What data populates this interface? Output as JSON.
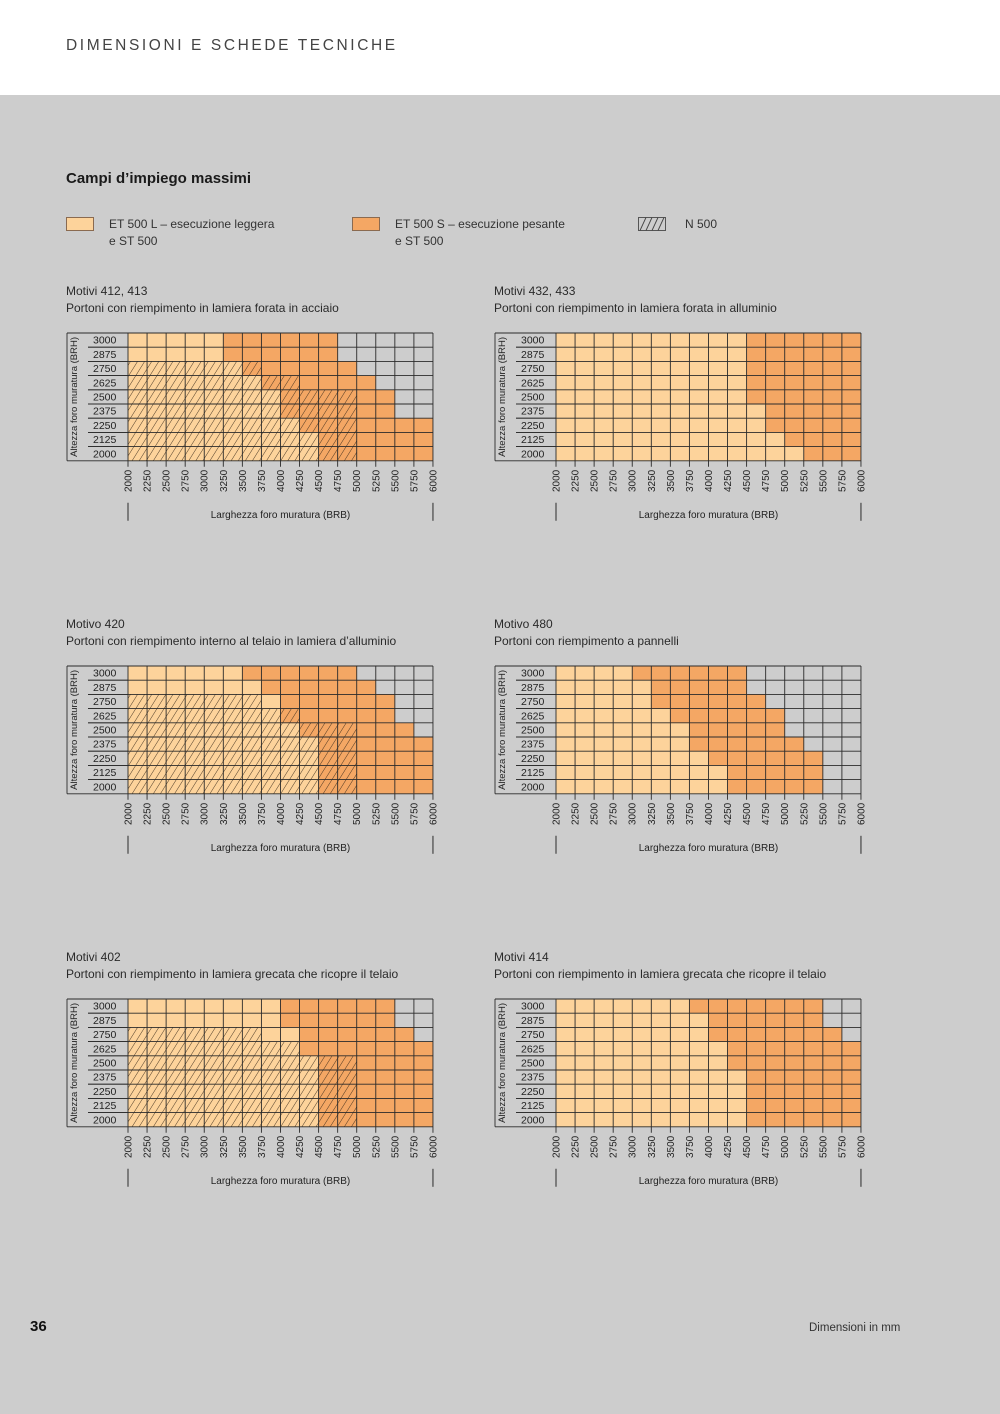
{
  "header": {
    "title": "DIMENSIONI E SCHEDE TECNICHE"
  },
  "section": {
    "title": "Campi d’impiego massimi"
  },
  "colors": {
    "light": "#fdd39b",
    "dark": "#f4a764",
    "empty": "#cdcdcd",
    "grid": "#2b2b2b",
    "hatch": "#3a2a1a"
  },
  "legend": [
    {
      "key": "L",
      "lines": [
        "ET 500 L – esecuzione leggera",
        "e ST 500"
      ],
      "swatch": "light"
    },
    {
      "key": "S",
      "lines": [
        "ET 500 S – esecuzione pesante",
        "e ST 500"
      ],
      "swatch": "dark"
    },
    {
      "key": "N",
      "lines": [
        "N 500"
      ],
      "swatch": "hatch"
    }
  ],
  "footer": {
    "page_number": "36",
    "note": "Dimensioni in mm"
  },
  "chart_data": [
    {
      "type": "heatmap",
      "title": "Motivi 412, 413",
      "subtitle": "Portoni con riempimento in lamiera forata in acciaio",
      "xlabel": "Larghezza foro muratura (BRB)",
      "ylabel": "Altezza foro muratura (BRH)",
      "x_ticks": [
        "2000",
        "2250",
        "2500",
        "2750",
        "3000",
        "3250",
        "3500",
        "3750",
        "4000",
        "4250",
        "4500",
        "4750",
        "5000",
        "5250",
        "5500",
        "5750",
        "6000"
      ],
      "y_ticks": [
        "3000",
        "2875",
        "2750",
        "2625",
        "2500",
        "2375",
        "2250",
        "2125",
        "2000"
      ],
      "legend_codes": {
        "L": "ET 500 L – esecuzione leggera e ST 500",
        "S": "ET 500 S – esecuzione pesante e ST 500",
        "-": "not available",
        "hatch": "N 500"
      },
      "rows": [
        {
          "height": "3000",
          "cells": "LLLLLSSSSSS-----",
          "n500_cols": 0
        },
        {
          "height": "2875",
          "cells": "LLLLLSSSSSS-----",
          "n500_cols": 0
        },
        {
          "height": "2750",
          "cells": "LLLLLLSSSSSS----",
          "n500_cols": 7
        },
        {
          "height": "2625",
          "cells": "LLLLLLLSSSSSS---",
          "n500_cols": 9
        },
        {
          "height": "2500",
          "cells": "LLLLLLLLSSSSSS--",
          "n500_cols": 12
        },
        {
          "height": "2375",
          "cells": "LLLLLLLLSSSSSS--",
          "n500_cols": 12
        },
        {
          "height": "2250",
          "cells": "LLLLLLLLLSSSSSSS",
          "n500_cols": 12
        },
        {
          "height": "2125",
          "cells": "LLLLLLLLLLSSSSSS",
          "n500_cols": 12
        },
        {
          "height": "2000",
          "cells": "LLLLLLLLLLSSSSSS",
          "n500_cols": 12
        }
      ]
    },
    {
      "type": "heatmap",
      "title": "Motivi 432, 433",
      "subtitle": "Portoni con riempimento in lamiera forata in alluminio",
      "xlabel": "Larghezza foro muratura (BRB)",
      "ylabel": "Altezza foro muratura (BRH)",
      "x_ticks": [
        "2000",
        "2250",
        "2500",
        "2750",
        "3000",
        "3250",
        "3500",
        "3750",
        "4000",
        "4250",
        "4500",
        "4750",
        "5000",
        "5250",
        "5500",
        "5750",
        "6000"
      ],
      "y_ticks": [
        "3000",
        "2875",
        "2750",
        "2625",
        "2500",
        "2375",
        "2250",
        "2125",
        "2000"
      ],
      "legend_codes": {
        "L": "ET 500 L – esecuzione leggera e ST 500",
        "S": "ET 500 S – esecuzione pesante e ST 500",
        "-": "not available",
        "hatch": "N 500"
      },
      "rows": [
        {
          "height": "3000",
          "cells": "LLLLLLLLLLSSSSSS",
          "n500_cols": 0
        },
        {
          "height": "2875",
          "cells": "LLLLLLLLLLSSSSSS",
          "n500_cols": 0
        },
        {
          "height": "2750",
          "cells": "LLLLLLLLLLSSSSSS",
          "n500_cols": 0
        },
        {
          "height": "2625",
          "cells": "LLLLLLLLLLSSSSSS",
          "n500_cols": 0
        },
        {
          "height": "2500",
          "cells": "LLLLLLLLLLSSSSSS",
          "n500_cols": 0
        },
        {
          "height": "2375",
          "cells": "LLLLLLLLLLLSSSSS",
          "n500_cols": 0
        },
        {
          "height": "2250",
          "cells": "LLLLLLLLLLLSSSSS",
          "n500_cols": 0
        },
        {
          "height": "2125",
          "cells": "LLLLLLLLLLLLSSSS",
          "n500_cols": 0
        },
        {
          "height": "2000",
          "cells": "LLLLLLLLLLLLLSSS",
          "n500_cols": 0
        }
      ]
    },
    {
      "type": "heatmap",
      "title": "Motivo 420",
      "subtitle": "Portoni con riempimento interno al telaio in lamiera d’alluminio",
      "xlabel": "Larghezza foro muratura (BRB)",
      "ylabel": "Altezza foro muratura (BRH)",
      "x_ticks": [
        "2000",
        "2250",
        "2500",
        "2750",
        "3000",
        "3250",
        "3500",
        "3750",
        "4000",
        "4250",
        "4500",
        "4750",
        "5000",
        "5250",
        "5500",
        "5750",
        "6000"
      ],
      "y_ticks": [
        "3000",
        "2875",
        "2750",
        "2625",
        "2500",
        "2375",
        "2250",
        "2125",
        "2000"
      ],
      "legend_codes": {
        "L": "ET 500 L – esecuzione leggera e ST 500",
        "S": "ET 500 S – esecuzione pesante e ST 500",
        "-": "not available",
        "hatch": "N 500"
      },
      "rows": [
        {
          "height": "3000",
          "cells": "LLLLLLSSSSSS----",
          "n500_cols": 0
        },
        {
          "height": "2875",
          "cells": "LLLLLLLSSSSSS---",
          "n500_cols": 0
        },
        {
          "height": "2750",
          "cells": "LLLLLLLLSSSSSS--",
          "n500_cols": 7
        },
        {
          "height": "2625",
          "cells": "LLLLLLLLSSSSSS--",
          "n500_cols": 9
        },
        {
          "height": "2500",
          "cells": "LLLLLLLLLSSSSSS-",
          "n500_cols": 12
        },
        {
          "height": "2375",
          "cells": "LLLLLLLLLLSSSSSS",
          "n500_cols": 12
        },
        {
          "height": "2250",
          "cells": "LLLLLLLLLLSSSSSS",
          "n500_cols": 12
        },
        {
          "height": "2125",
          "cells": "LLLLLLLLLLSSSSSS",
          "n500_cols": 12
        },
        {
          "height": "2000",
          "cells": "LLLLLLLLLLSSSSSS",
          "n500_cols": 12
        }
      ]
    },
    {
      "type": "heatmap",
      "title": "Motivo 480",
      "subtitle": "Portoni con riempimento a pannelli",
      "xlabel": "Larghezza foro muratura (BRB)",
      "ylabel": "Altezza foro muratura (BRH)",
      "x_ticks": [
        "2000",
        "2250",
        "2500",
        "2750",
        "3000",
        "3250",
        "3500",
        "3750",
        "4000",
        "4250",
        "4500",
        "4750",
        "5000",
        "5250",
        "5500",
        "5750",
        "6000"
      ],
      "y_ticks": [
        "3000",
        "2875",
        "2750",
        "2625",
        "2500",
        "2375",
        "2250",
        "2125",
        "2000"
      ],
      "legend_codes": {
        "L": "ET 500 L – esecuzione leggera e ST 500",
        "S": "ET 500 S – esecuzione pesante e ST 500",
        "-": "not available",
        "hatch": "N 500"
      },
      "rows": [
        {
          "height": "3000",
          "cells": "LLLLSSSSSS------",
          "n500_cols": 0
        },
        {
          "height": "2875",
          "cells": "LLLLLSSSSS------",
          "n500_cols": 0
        },
        {
          "height": "2750",
          "cells": "LLLLLSSSSSS-----",
          "n500_cols": 0
        },
        {
          "height": "2625",
          "cells": "LLLLLLSSSSSS----",
          "n500_cols": 0
        },
        {
          "height": "2500",
          "cells": "LLLLLLLSSSSS----",
          "n500_cols": 0
        },
        {
          "height": "2375",
          "cells": "LLLLLLLSSSSSS---",
          "n500_cols": 0
        },
        {
          "height": "2250",
          "cells": "LLLLLLLLSSSSSS--",
          "n500_cols": 0
        },
        {
          "height": "2125",
          "cells": "LLLLLLLLLSSSSS--",
          "n500_cols": 0
        },
        {
          "height": "2000",
          "cells": "LLLLLLLLLSSSSS--",
          "n500_cols": 0
        }
      ]
    },
    {
      "type": "heatmap",
      "title": "Motivi 402",
      "subtitle": "Portoni con riempimento in lamiera grecata che ricopre il telaio",
      "xlabel": "Larghezza foro muratura (BRB)",
      "ylabel": "Altezza foro muratura (BRH)",
      "x_ticks": [
        "2000",
        "2250",
        "2500",
        "2750",
        "3000",
        "3250",
        "3500",
        "3750",
        "4000",
        "4250",
        "4500",
        "4750",
        "5000",
        "5250",
        "5500",
        "5750",
        "6000"
      ],
      "y_ticks": [
        "3000",
        "2875",
        "2750",
        "2625",
        "2500",
        "2375",
        "2250",
        "2125",
        "2000"
      ],
      "legend_codes": {
        "L": "ET 500 L – esecuzione leggera e ST 500",
        "S": "ET 500 S – esecuzione pesante e ST 500",
        "-": "not available",
        "hatch": "N 500"
      },
      "rows": [
        {
          "height": "3000",
          "cells": "LLLLLLLLSSSSSS--",
          "n500_cols": 0
        },
        {
          "height": "2875",
          "cells": "LLLLLLLLSSSSSS--",
          "n500_cols": 0
        },
        {
          "height": "2750",
          "cells": "LLLLLLLLLSSSSSS-",
          "n500_cols": 7
        },
        {
          "height": "2625",
          "cells": "LLLLLLLLLSSSSSSS",
          "n500_cols": 9
        },
        {
          "height": "2500",
          "cells": "LLLLLLLLLLSSSSSS",
          "n500_cols": 12
        },
        {
          "height": "2375",
          "cells": "LLLLLLLLLLSSSSSS",
          "n500_cols": 12
        },
        {
          "height": "2250",
          "cells": "LLLLLLLLLLSSSSSS",
          "n500_cols": 12
        },
        {
          "height": "2125",
          "cells": "LLLLLLLLLLSSSSSS",
          "n500_cols": 12
        },
        {
          "height": "2000",
          "cells": "LLLLLLLLLLSSSSSS",
          "n500_cols": 12
        }
      ]
    },
    {
      "type": "heatmap",
      "title": "Motivi 414",
      "subtitle": "Portoni con riempimento in lamiera grecata che ricopre il telaio",
      "xlabel": "Larghezza foro muratura (BRB)",
      "ylabel": "Altezza foro muratura (BRH)",
      "x_ticks": [
        "2000",
        "2250",
        "2500",
        "2750",
        "3000",
        "3250",
        "3500",
        "3750",
        "4000",
        "4250",
        "4500",
        "4750",
        "5000",
        "5250",
        "5500",
        "5750",
        "6000"
      ],
      "y_ticks": [
        "3000",
        "2875",
        "2750",
        "2625",
        "2500",
        "2375",
        "2250",
        "2125",
        "2000"
      ],
      "legend_codes": {
        "L": "ET 500 L – esecuzione leggera e ST 500",
        "S": "ET 500 S – esecuzione pesante e ST 500",
        "-": "not available",
        "hatch": "N 500"
      },
      "rows": [
        {
          "height": "3000",
          "cells": "LLLLLLLSSSSSSS--",
          "n500_cols": 0
        },
        {
          "height": "2875",
          "cells": "LLLLLLLLSSSSSS--",
          "n500_cols": 0
        },
        {
          "height": "2750",
          "cells": "LLLLLLLLSSSSSSS-",
          "n500_cols": 0
        },
        {
          "height": "2625",
          "cells": "LLLLLLLLLSSSSSSS",
          "n500_cols": 0
        },
        {
          "height": "2500",
          "cells": "LLLLLLLLLSSSSSSS",
          "n500_cols": 0
        },
        {
          "height": "2375",
          "cells": "LLLLLLLLLLSSSSSS",
          "n500_cols": 0
        },
        {
          "height": "2250",
          "cells": "LLLLLLLLLLSSSSSS",
          "n500_cols": 0
        },
        {
          "height": "2125",
          "cells": "LLLLLLLLLLSSSSSS",
          "n500_cols": 0
        },
        {
          "height": "2000",
          "cells": "LLLLLLLLLLSSSSSS",
          "n500_cols": 0
        }
      ]
    }
  ]
}
